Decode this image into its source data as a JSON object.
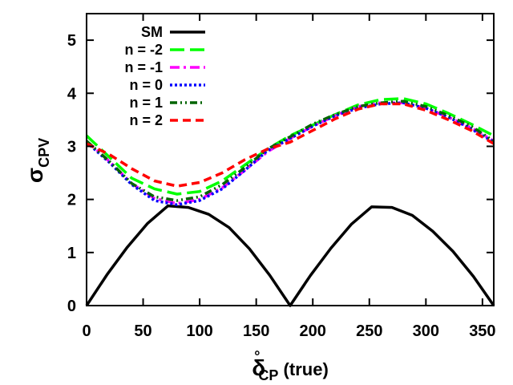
{
  "chart_data": {
    "type": "line",
    "xlabel_main": "δ",
    "xlabel_sub": "CP",
    "xlabel_sup": "°",
    "xlabel_suffix": " (true)",
    "ylabel_main": "σ",
    "ylabel_sub": "CPV",
    "xlim": [
      0,
      360
    ],
    "ylim": [
      0,
      5.5
    ],
    "xticks": [
      0,
      50,
      100,
      150,
      200,
      250,
      300,
      350
    ],
    "yticks": [
      0,
      1,
      2,
      3,
      4,
      5
    ],
    "grid": false,
    "legend_position": "top-left",
    "series": [
      {
        "name": "SM",
        "color": "#000000",
        "dash": "solid",
        "x": [
          0,
          18,
          36,
          54,
          72,
          90,
          108,
          126,
          144,
          162,
          180,
          198,
          216,
          234,
          252,
          270,
          288,
          306,
          324,
          342,
          360
        ],
        "y": [
          0.0,
          0.58,
          1.1,
          1.55,
          1.88,
          1.85,
          1.72,
          1.47,
          1.07,
          0.57,
          0.0,
          0.57,
          1.08,
          1.53,
          1.86,
          1.85,
          1.7,
          1.4,
          1.02,
          0.55,
          0.0
        ]
      },
      {
        "name": "n = -2",
        "color": "#00ff00",
        "dash": "long-dash",
        "x": [
          0,
          20,
          40,
          60,
          80,
          100,
          120,
          140,
          160,
          180,
          200,
          220,
          240,
          260,
          280,
          300,
          320,
          340,
          360
        ],
        "y": [
          3.2,
          2.8,
          2.4,
          2.2,
          2.1,
          2.15,
          2.35,
          2.65,
          2.95,
          3.2,
          3.4,
          3.6,
          3.78,
          3.88,
          3.9,
          3.8,
          3.62,
          3.42,
          3.2
        ]
      },
      {
        "name": "n = -1",
        "color": "#ff00ff",
        "dash": "dash-dot",
        "x": [
          0,
          20,
          40,
          60,
          80,
          100,
          120,
          140,
          160,
          180,
          200,
          220,
          240,
          260,
          280,
          300,
          320,
          340,
          360
        ],
        "y": [
          3.1,
          2.72,
          2.3,
          2.02,
          1.92,
          2.0,
          2.22,
          2.55,
          2.9,
          3.15,
          3.38,
          3.58,
          3.75,
          3.82,
          3.82,
          3.72,
          3.55,
          3.35,
          3.1
        ]
      },
      {
        "name": "n = 0",
        "color": "#0000ff",
        "dash": "dotted",
        "x": [
          0,
          20,
          40,
          60,
          80,
          100,
          120,
          140,
          160,
          180,
          200,
          220,
          240,
          260,
          280,
          300,
          320,
          340,
          360
        ],
        "y": [
          3.08,
          2.7,
          2.28,
          1.98,
          1.9,
          1.98,
          2.2,
          2.55,
          2.92,
          3.15,
          3.38,
          3.58,
          3.72,
          3.8,
          3.82,
          3.72,
          3.55,
          3.33,
          3.08
        ]
      },
      {
        "name": "n = 1",
        "color": "#006400",
        "dash": "dash-dot-dot",
        "x": [
          0,
          20,
          40,
          60,
          80,
          100,
          120,
          140,
          160,
          180,
          200,
          220,
          240,
          260,
          280,
          300,
          320,
          340,
          360
        ],
        "y": [
          3.1,
          2.72,
          2.3,
          2.05,
          1.98,
          2.05,
          2.28,
          2.6,
          2.95,
          3.18,
          3.42,
          3.6,
          3.75,
          3.82,
          3.85,
          3.75,
          3.58,
          3.38,
          3.1
        ]
      },
      {
        "name": "n = 2",
        "color": "#ff0000",
        "dash": "dashed",
        "x": [
          0,
          20,
          40,
          60,
          80,
          100,
          120,
          140,
          160,
          180,
          200,
          220,
          240,
          260,
          280,
          300,
          320,
          340,
          360
        ],
        "y": [
          3.05,
          2.85,
          2.58,
          2.35,
          2.25,
          2.32,
          2.5,
          2.75,
          2.95,
          3.08,
          3.3,
          3.52,
          3.7,
          3.8,
          3.8,
          3.68,
          3.5,
          3.3,
          3.05
        ]
      }
    ]
  }
}
